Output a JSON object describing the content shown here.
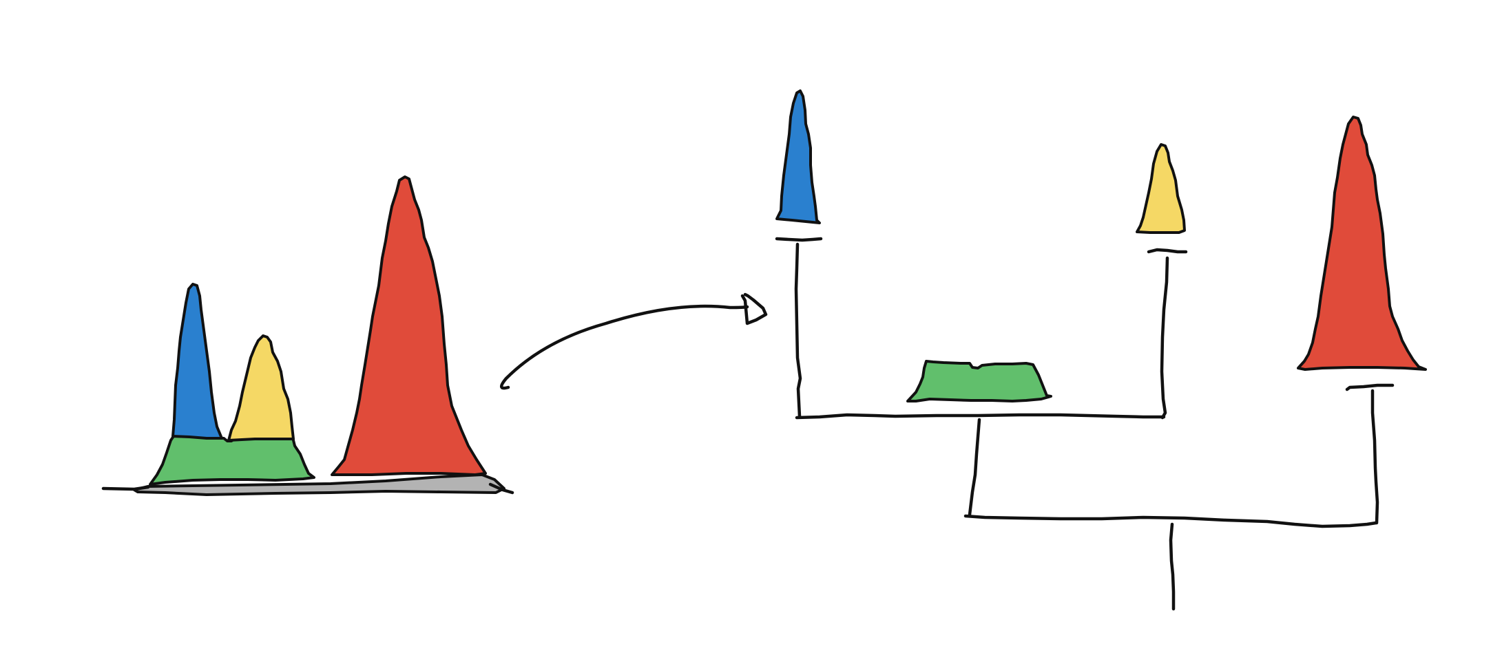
{
  "diagram": {
    "colors": {
      "blue": "#2a80cf",
      "yellow": "#f5d865",
      "green": "#61bf6c",
      "red": "#e04b3a",
      "gray": "#b3b3b3",
      "ink": "#111111"
    },
    "left_histogram": {
      "layers": [
        "gray",
        "green",
        "blue",
        "yellow",
        "red"
      ]
    },
    "hierarchy_tree": {
      "leaves": [
        "blue",
        "yellow",
        "red"
      ],
      "internal_nodes": [
        "green"
      ]
    }
  }
}
